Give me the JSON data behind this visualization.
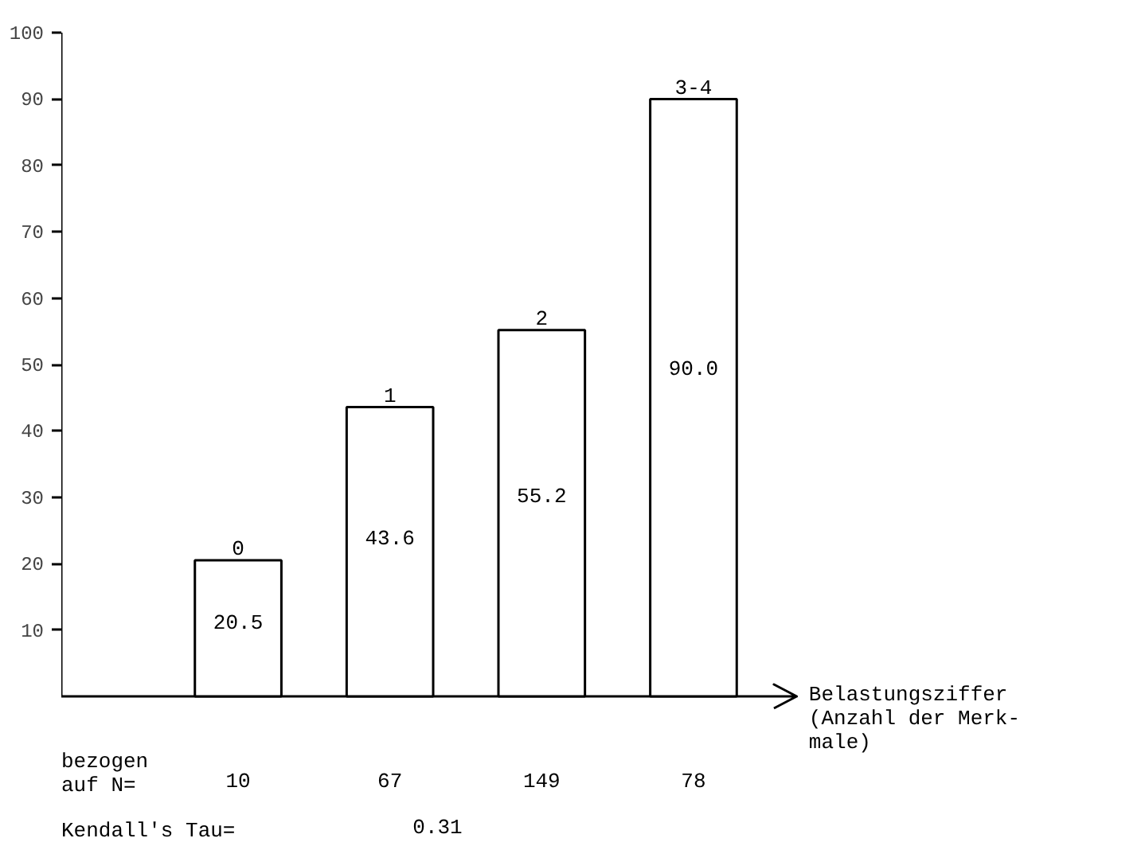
{
  "chart_data": {
    "type": "bar",
    "categories": [
      "0",
      "1",
      "2",
      "3-4"
    ],
    "values": [
      20.5,
      43.6,
      55.2,
      90.0
    ],
    "color": "#ffffff",
    "ylim": [
      0,
      100
    ],
    "yticks": [
      10,
      20,
      30,
      40,
      50,
      60,
      70,
      80,
      90,
      100
    ],
    "xlabel": "Belastungsziffer\n(Anzahl der Merk-\nmale)",
    "value_labels": [
      "20.5",
      "43.6",
      "55.2",
      "90.0"
    ],
    "annotations": [
      "bezogen\nauf N=",
      "10",
      "67",
      "149",
      "78",
      "Kendall's Tau=",
      "0.31"
    ]
  }
}
